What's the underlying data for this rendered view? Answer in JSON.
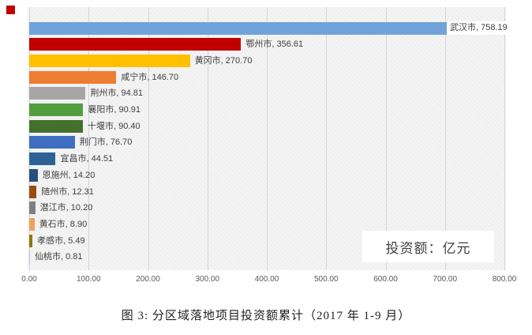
{
  "figure": {
    "caption": "图 3: 分区域落地项目投资额累计（2017 年 1-9 月）",
    "corner_marker_color": "#C00000"
  },
  "chart_data": {
    "type": "bar",
    "orientation": "horizontal",
    "title": "",
    "xlabel": "",
    "ylabel": "",
    "unit_note": "投资额：亿元",
    "unit_note_position": "inside-bottom-right",
    "grid": "vertical",
    "xlim": [
      0,
      800
    ],
    "categories": [
      "武汉市",
      "鄂州市",
      "黄冈市",
      "咸宁市",
      "荆州市",
      "襄阳市",
      "十堰市",
      "荆门市",
      "宜昌市",
      "恩施州",
      "随州市",
      "潜江市",
      "黄石市",
      "孝感市",
      "仙桃市"
    ],
    "values": [
      758.19,
      356.61,
      270.7,
      146.7,
      94.81,
      90.91,
      90.4,
      76.7,
      44.51,
      14.2,
      12.31,
      10.2,
      8.9,
      5.49,
      0.81
    ],
    "labels": [
      "武汉市, 758.19",
      "鄂州市, 356.61",
      "黄冈市, 270.70",
      "咸宁市, 146.70",
      "荆州市, 94.81",
      "襄阳市, 90.91",
      "十堰市, 90.40",
      "荆门市, 76.70",
      "宜昌市, 44.51",
      "恩施州, 14.20",
      "随州市, 12.31",
      "潜江市, 10.20",
      "黄石市, 8.90",
      "孝感市, 5.49",
      "仙桃市, 0.81"
    ],
    "colors": [
      "#6FA3D9",
      "#C00000",
      "#FFC000",
      "#ED7D31",
      "#A6A6A6",
      "#529E3F",
      "#44702C",
      "#3D6EBF",
      "#2C6295",
      "#284E80",
      "#9C4A0E",
      "#7F7F7F",
      "#F0A15F",
      "#8F7600",
      "#A9C5E8"
    ],
    "x_ticks": [
      {
        "value": 0,
        "label": "0.00"
      },
      {
        "value": 100,
        "label": "100.00"
      },
      {
        "value": 200,
        "label": "200.00"
      },
      {
        "value": 300,
        "label": "300.00"
      },
      {
        "value": 400,
        "label": "400.00"
      },
      {
        "value": 500,
        "label": "500.00"
      },
      {
        "value": 600,
        "label": "600.00"
      },
      {
        "value": 700,
        "label": "700.00"
      },
      {
        "value": 800,
        "label": "800.00"
      }
    ]
  }
}
